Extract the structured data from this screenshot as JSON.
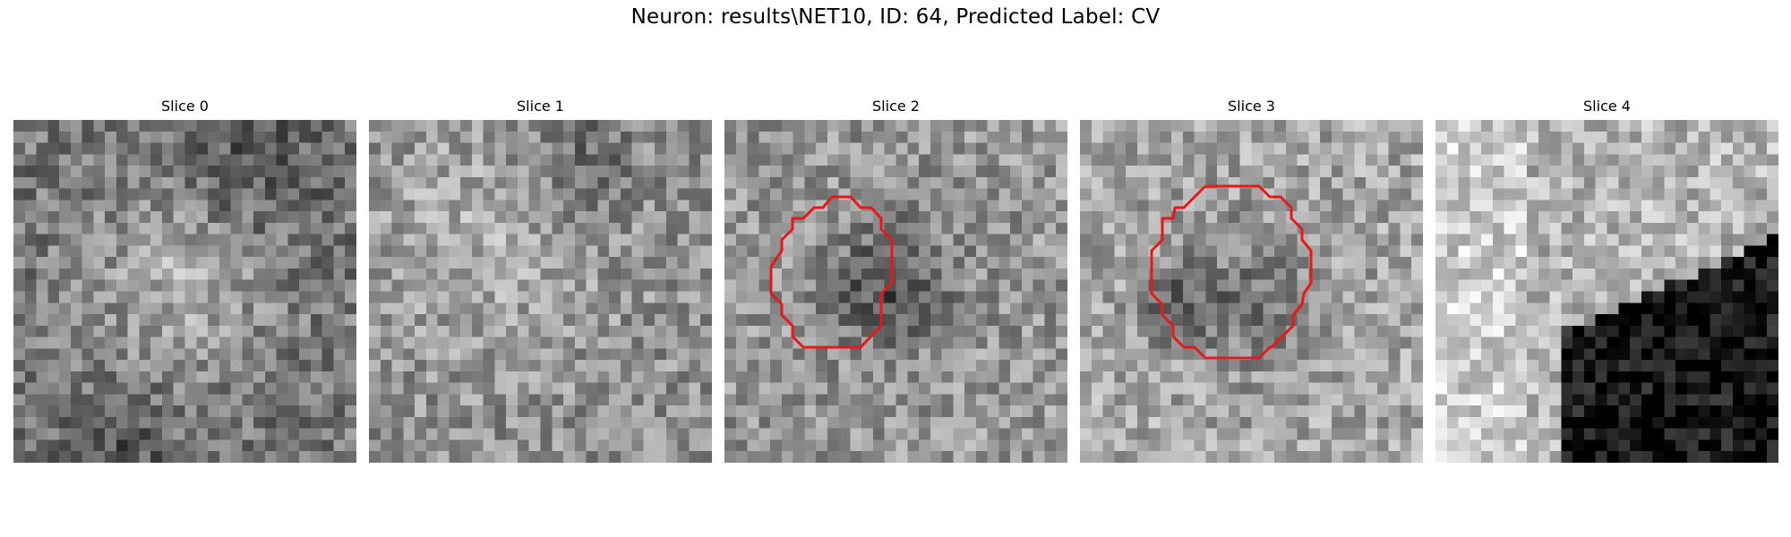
{
  "figure": {
    "suptitle": "Neuron: results\\NET10, ID: 64, Predicted Label: CV",
    "colors": {
      "background": "#ffffff",
      "contour": "#e8181a",
      "colormap": "gray"
    },
    "panels": [
      {
        "title": "Slice 0",
        "has_contour": false
      },
      {
        "title": "Slice 1",
        "has_contour": false
      },
      {
        "title": "Slice 2",
        "has_contour": true
      },
      {
        "title": "Slice 3",
        "has_contour": true
      },
      {
        "title": "Slice 4",
        "has_contour": false
      }
    ]
  }
}
